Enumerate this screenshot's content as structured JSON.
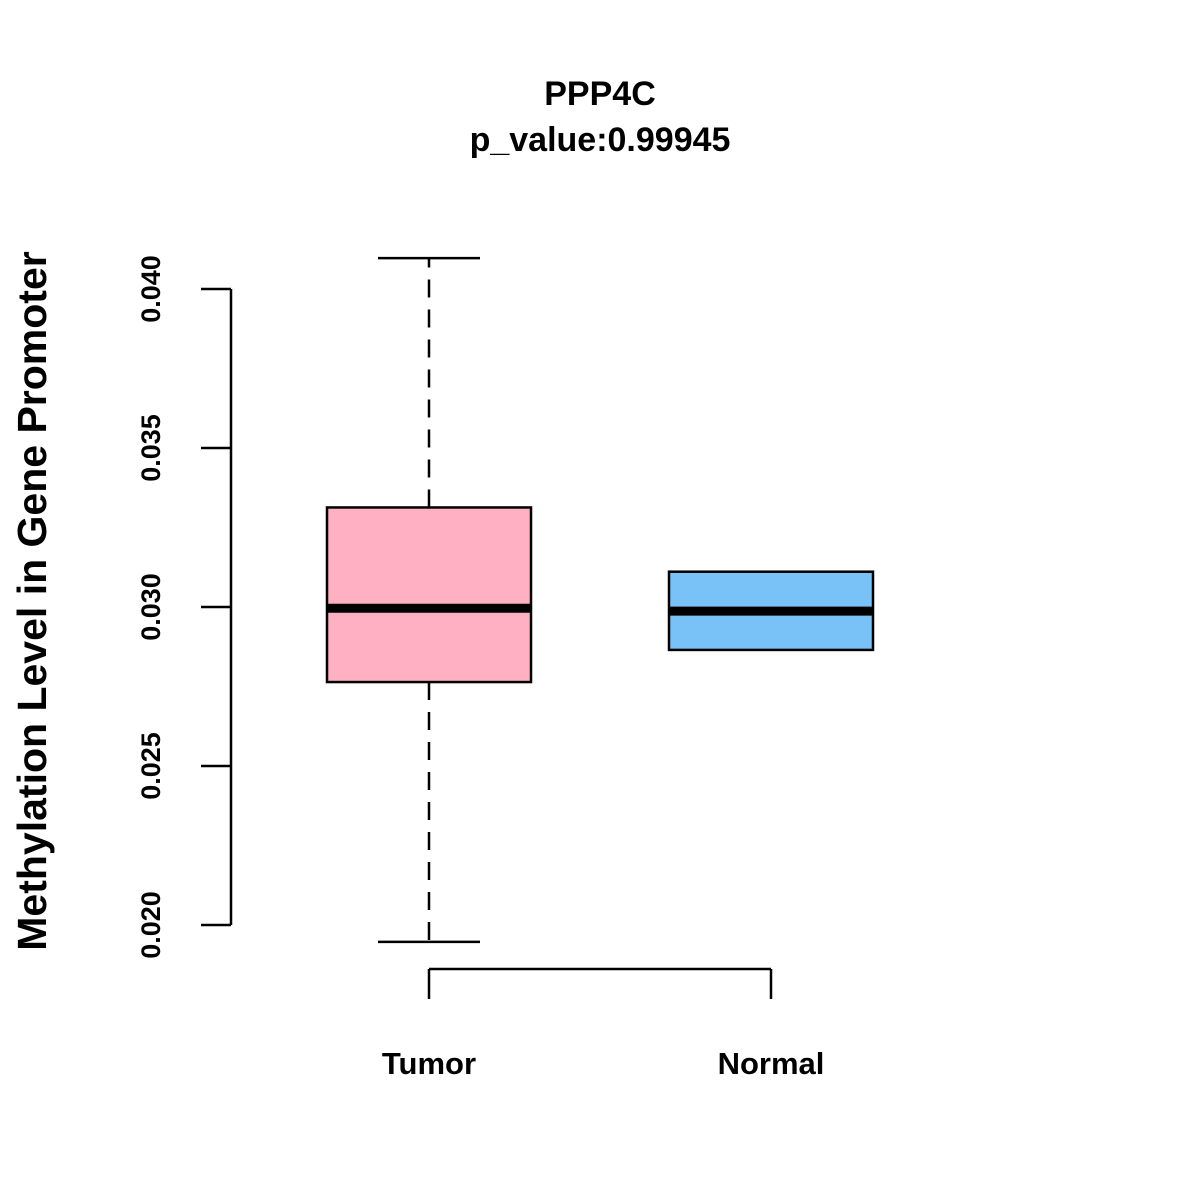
{
  "chart_data": {
    "type": "boxplot",
    "title": "PPP4C",
    "subtitle": "p_value:0.99945",
    "xlabel": "",
    "ylabel": "Methylation Level in Gene Promoter",
    "ylim": [
      0.02,
      0.04
    ],
    "yticks": [
      0.02,
      0.025,
      0.03,
      0.035,
      0.04
    ],
    "ytick_labels": [
      "0.020",
      "0.025",
      "0.030",
      "0.035",
      "0.040"
    ],
    "categories": [
      "Tumor",
      "Normal"
    ],
    "series": [
      {
        "name": "Tumor",
        "whisker_low": 0.01947,
        "q1": 0.02764,
        "median": 0.02996,
        "q3": 0.03313,
        "whisker_high": 0.04097,
        "color": "#FFB0C2"
      },
      {
        "name": "Normal",
        "whisker_low": 0.02865,
        "q1": 0.02865,
        "median": 0.02987,
        "q3": 0.03111,
        "whisker_high": 0.03111,
        "color": "#78C2F8"
      }
    ],
    "grid": false
  }
}
